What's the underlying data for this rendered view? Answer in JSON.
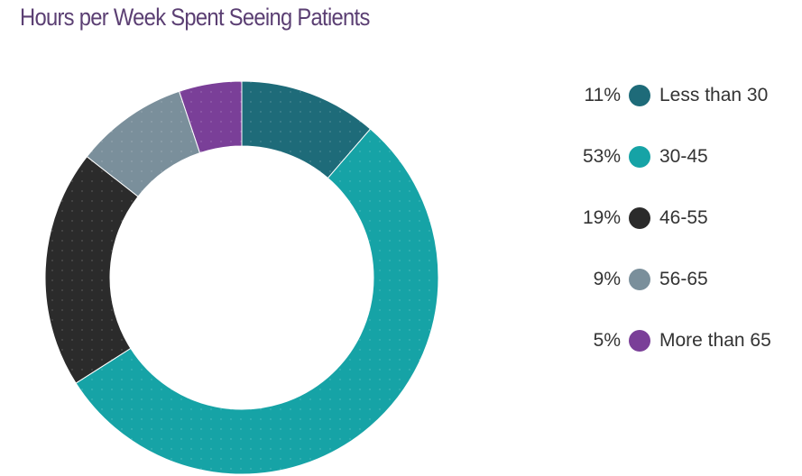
{
  "colors": {
    "title": "#5b3f73"
  },
  "chart_data": {
    "type": "pie",
    "title": "Hours per Week Spent Seeing Patients",
    "donut": true,
    "legend_placement": "right",
    "slices": [
      {
        "label": "Less than 30",
        "value": 11,
        "display": "11%",
        "color": "#1e6b79"
      },
      {
        "label": "30-45",
        "value": 53,
        "display": "53%",
        "color": "#16a3a6"
      },
      {
        "label": "46-55",
        "value": 19,
        "display": "19%",
        "color": "#2b2b2b"
      },
      {
        "label": "56-65",
        "value": 9,
        "display": "9%",
        "color": "#7a8f9b"
      },
      {
        "label": "More than 65",
        "value": 5,
        "display": "5%",
        "color": "#7a3f98"
      }
    ]
  }
}
